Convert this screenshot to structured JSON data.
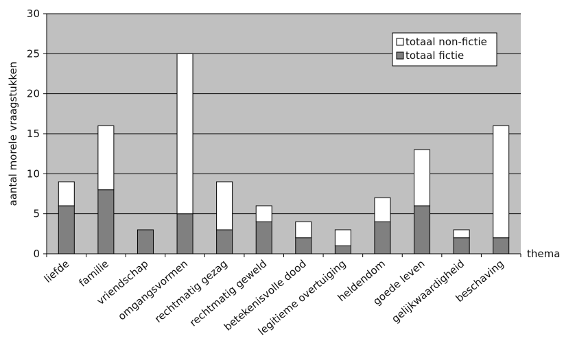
{
  "chart_data": {
    "type": "bar",
    "stacked": true,
    "title": "",
    "xlabel": "thema",
    "ylabel": "aantal morele vraagstukken",
    "ylim": [
      0,
      30
    ],
    "yticks": [
      0,
      5,
      10,
      15,
      20,
      25,
      30
    ],
    "grid": true,
    "legend_position": "top-right",
    "categories": [
      "liefde",
      "familie",
      "vriendschap",
      "omgangsvormen",
      "rechtmatig gezag",
      "rechtmatig geweld",
      "betekenisvolle dood",
      "legitieme overtuiging",
      "heldendom",
      "goede leven",
      "gelijkwaardigheid",
      "beschaving"
    ],
    "series": [
      {
        "name": "totaal fictie",
        "color": "#808080",
        "values": [
          6,
          8,
          3,
          5,
          3,
          4,
          2,
          1,
          4,
          6,
          2,
          2
        ]
      },
      {
        "name": "totaal non-fictie",
        "color": "#ffffff",
        "values": [
          3,
          8,
          0,
          20,
          6,
          2,
          2,
          2,
          3,
          7,
          1,
          14
        ]
      }
    ],
    "legend_order": [
      "totaal non-fictie",
      "totaal fictie"
    ],
    "colors": {
      "plot_background": "#c0c0c0",
      "gridline": "#000000"
    }
  }
}
